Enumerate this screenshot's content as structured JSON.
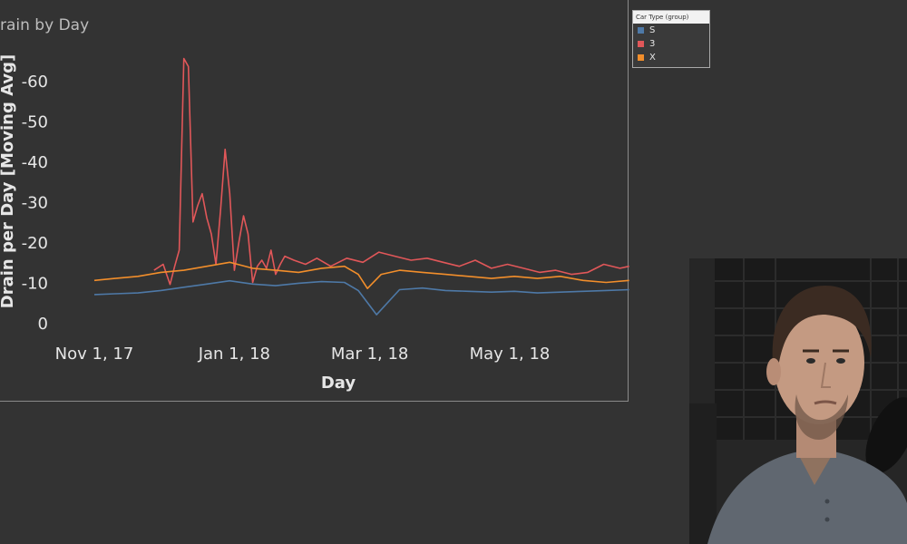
{
  "colors": {
    "background": "#333333",
    "axis_text": "#e6e6e6",
    "series_S": "#4e79a7",
    "series_3": "#e15759",
    "series_X": "#f28e2b"
  },
  "chart_data": {
    "type": "line",
    "title": "rain by Day",
    "xlabel": "Day",
    "ylabel": "Drain per Day [Moving Avg]",
    "ylim": [
      0,
      -66
    ],
    "y_reversed": true,
    "y_ticks": [
      0,
      -10,
      -20,
      -30,
      -40,
      -50,
      -60
    ],
    "y_tick_labels": [
      "0",
      "-10",
      "-20",
      "-30",
      "-40",
      "-50",
      "-60"
    ],
    "x_tick_labels": [
      "Nov 1, 17",
      "Jan 1, 18",
      "Mar 1, 18",
      "May 1, 18"
    ],
    "x_tick_dates": [
      "2017-11-01",
      "2018-01-01",
      "2018-03-01",
      "2018-05-01"
    ],
    "grid": false,
    "legend": {
      "title": "Car Type (group)",
      "position": "top-right",
      "items": [
        {
          "label": "S",
          "color": "#4e79a7"
        },
        {
          "label": "3",
          "color": "#e15759"
        },
        {
          "label": "X",
          "color": "#f28e2b"
        }
      ]
    },
    "series": [
      {
        "name": "S",
        "color": "#4e79a7",
        "x": [
          "2017-11-01",
          "2017-11-10",
          "2017-11-20",
          "2017-11-30",
          "2017-12-10",
          "2017-12-20",
          "2017-12-30",
          "2018-01-09",
          "2018-01-19",
          "2018-01-29",
          "2018-02-08",
          "2018-02-18",
          "2018-02-24",
          "2018-03-04",
          "2018-03-14",
          "2018-03-24",
          "2018-04-03",
          "2018-04-13",
          "2018-04-23",
          "2018-05-03",
          "2018-05-13",
          "2018-05-23",
          "2018-06-02",
          "2018-06-12",
          "2018-06-22"
        ],
        "y": [
          -7.0,
          -7.2,
          -7.4,
          -8.0,
          -8.8,
          -9.6,
          -10.4,
          -9.6,
          -9.2,
          -9.8,
          -10.2,
          -10.0,
          -8.0,
          -2.0,
          -8.2,
          -8.6,
          -8.0,
          -7.8,
          -7.6,
          -7.8,
          -7.4,
          -7.6,
          -7.8,
          -8.0,
          -8.2
        ]
      },
      {
        "name": "3",
        "color": "#e15759",
        "x": [
          "2017-11-27",
          "2017-12-01",
          "2017-12-04",
          "2017-12-06",
          "2017-12-08",
          "2017-12-10",
          "2017-12-12",
          "2017-12-14",
          "2017-12-16",
          "2017-12-18",
          "2017-12-20",
          "2017-12-22",
          "2017-12-24",
          "2017-12-26",
          "2017-12-28",
          "2017-12-30",
          "2018-01-01",
          "2018-01-03",
          "2018-01-05",
          "2018-01-07",
          "2018-01-09",
          "2018-01-11",
          "2018-01-13",
          "2018-01-15",
          "2018-01-17",
          "2018-01-19",
          "2018-01-21",
          "2018-01-23",
          "2018-01-27",
          "2018-02-01",
          "2018-02-06",
          "2018-02-12",
          "2018-02-19",
          "2018-02-26",
          "2018-03-05",
          "2018-03-12",
          "2018-03-19",
          "2018-03-26",
          "2018-04-02",
          "2018-04-09",
          "2018-04-16",
          "2018-04-23",
          "2018-04-30",
          "2018-05-07",
          "2018-05-14",
          "2018-05-21",
          "2018-05-28",
          "2018-06-04",
          "2018-06-11",
          "2018-06-18",
          "2018-06-22"
        ],
        "y": [
          -13.0,
          -14.5,
          -9.5,
          -14.0,
          -18.0,
          -65.5,
          -63.5,
          -25.0,
          -29.0,
          -32.0,
          -26.0,
          -22.0,
          -14.5,
          -28.0,
          -43.0,
          -32.0,
          -13.0,
          -20.0,
          -26.5,
          -22.0,
          -10.0,
          -14.0,
          -15.5,
          -13.5,
          -18.0,
          -12.0,
          -14.5,
          -16.5,
          -15.5,
          -14.5,
          -16.0,
          -14.0,
          -16.0,
          -15.0,
          -17.5,
          -16.5,
          -15.5,
          -16.0,
          -15.0,
          -14.0,
          -15.5,
          -13.5,
          -14.5,
          -13.5,
          -12.5,
          -13.0,
          -12.0,
          -12.5,
          -14.5,
          -13.5,
          -14.0
        ]
      },
      {
        "name": "X",
        "color": "#f28e2b",
        "x": [
          "2017-11-01",
          "2017-11-10",
          "2017-11-20",
          "2017-11-30",
          "2017-12-10",
          "2017-12-20",
          "2017-12-30",
          "2018-01-09",
          "2018-01-19",
          "2018-01-29",
          "2018-02-08",
          "2018-02-18",
          "2018-02-24",
          "2018-02-28",
          "2018-03-06",
          "2018-03-14",
          "2018-03-24",
          "2018-04-03",
          "2018-04-13",
          "2018-04-23",
          "2018-05-03",
          "2018-05-13",
          "2018-05-23",
          "2018-06-02",
          "2018-06-12",
          "2018-06-22"
        ],
        "y": [
          -10.5,
          -11.0,
          -11.5,
          -12.5,
          -13.0,
          -14.0,
          -15.0,
          -13.5,
          -13.0,
          -12.5,
          -13.5,
          -14.0,
          -12.0,
          -8.5,
          -12.0,
          -13.0,
          -12.5,
          -12.0,
          -11.5,
          -11.0,
          -11.5,
          -11.0,
          -11.5,
          -10.5,
          -10.0,
          -10.5
        ]
      }
    ]
  }
}
